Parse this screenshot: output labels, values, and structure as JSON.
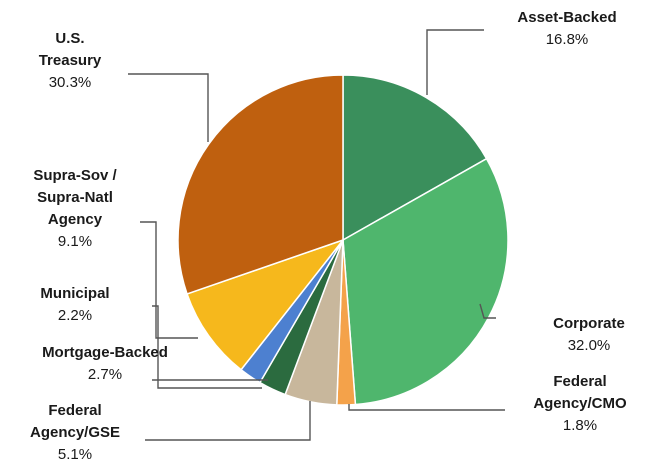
{
  "chart_data": {
    "type": "pie",
    "title": "",
    "legend": "none",
    "start_angle_deg": 0,
    "direction": "clockwise",
    "slices": [
      {
        "label": "Asset-Backed",
        "label_lines": [
          "Asset-Backed"
        ],
        "value": 16.8,
        "value_label": "16.8%",
        "color": "#3a8f5c"
      },
      {
        "label": "Corporate",
        "label_lines": [
          "Corporate"
        ],
        "value": 32.0,
        "value_label": "32.0%",
        "color": "#4fb66d"
      },
      {
        "label": "Federal Agency/CMO",
        "label_lines": [
          "Federal",
          "Agency/CMO"
        ],
        "value": 1.8,
        "value_label": "1.8%",
        "color": "#f4a24a"
      },
      {
        "label": "Federal Agency/GSE",
        "label_lines": [
          "Federal",
          "Agency/GSE"
        ],
        "value": 5.1,
        "value_label": "5.1%",
        "color": "#c8b79c"
      },
      {
        "label": "Mortgage-Backed",
        "label_lines": [
          "Mortgage-Backed"
        ],
        "value": 2.7,
        "value_label": "2.7%",
        "color": "#2b6b3f"
      },
      {
        "label": "Municipal",
        "label_lines": [
          "Municipal"
        ],
        "value": 2.2,
        "value_label": "2.2%",
        "color": "#4d80d0"
      },
      {
        "label": "Supra-Sov / Supra-Natl Agency",
        "label_lines": [
          "Supra-Sov /",
          "Supra-Natl",
          "Agency"
        ],
        "value": 9.1,
        "value_label": "9.1%",
        "color": "#f6b81c"
      },
      {
        "label": "U.S. Treasury",
        "label_lines": [
          "U.S.",
          "Treasury"
        ],
        "value": 30.3,
        "value_label": "30.3%",
        "color": "#bf600f"
      }
    ]
  }
}
